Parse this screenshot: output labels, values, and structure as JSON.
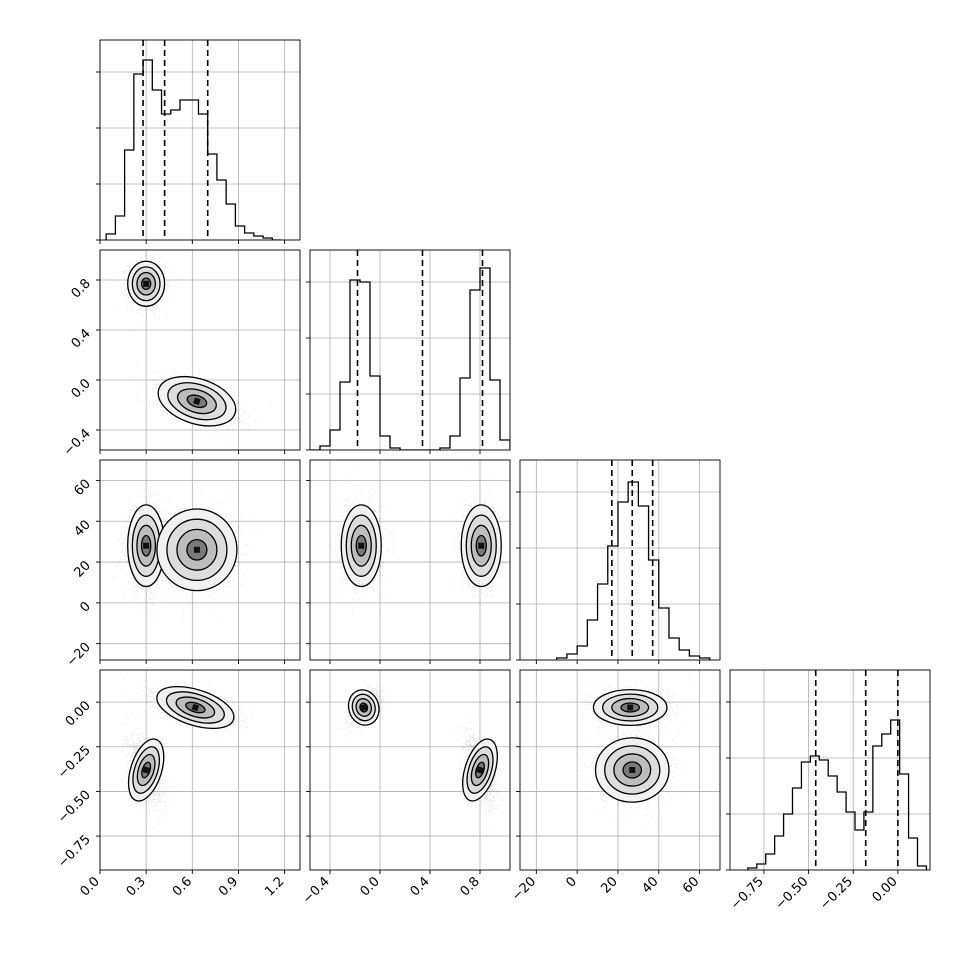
{
  "chart_data": {
    "type": "corner",
    "title": "",
    "grid": true,
    "variables": [
      {
        "range": [
          0.0,
          1.3
        ],
        "ticks": [
          0.0,
          0.3,
          0.6,
          0.9,
          1.2
        ],
        "tick_labels": [
          "0.0",
          "0.3",
          "0.6",
          "0.9",
          "1.2"
        ]
      },
      {
        "range": [
          -0.56,
          1.04
        ],
        "ticks": [
          -0.4,
          0.0,
          0.4,
          0.8
        ],
        "tick_labels": [
          "−0.4",
          "0.0",
          "0.4",
          "0.8"
        ]
      },
      {
        "range": [
          -28,
          70
        ],
        "ticks": [
          -20,
          0,
          20,
          40,
          60
        ],
        "tick_labels": [
          "−20",
          "0",
          "20",
          "40",
          "60"
        ]
      },
      {
        "range": [
          -0.94,
          0.18
        ],
        "ticks": [
          -0.75,
          -0.5,
          -0.25,
          0.0
        ],
        "tick_labels": [
          "−0.75",
          "−0.50",
          "−0.25",
          "0.00"
        ]
      }
    ],
    "diagonal_histograms": [
      {
        "bin_edges": [
          0.04,
          0.1,
          0.16,
          0.22,
          0.28,
          0.34,
          0.4,
          0.46,
          0.52,
          0.58,
          0.64,
          0.7,
          0.76,
          0.82,
          0.88,
          0.94,
          1.0,
          1.06,
          1.12,
          1.18
        ],
        "counts": [
          0.03,
          0.12,
          0.45,
          0.83,
          0.9,
          0.75,
          0.63,
          0.65,
          0.7,
          0.7,
          0.63,
          0.43,
          0.3,
          0.18,
          0.07,
          0.035,
          0.02,
          0.01,
          0.0
        ],
        "quantiles": [
          0.28,
          0.42,
          0.7
        ]
      },
      {
        "bin_edges": [
          -0.56,
          -0.48,
          -0.4,
          -0.32,
          -0.24,
          -0.16,
          -0.08,
          0.0,
          0.08,
          0.16,
          0.24,
          0.32,
          0.4,
          0.48,
          0.56,
          0.64,
          0.72,
          0.8,
          0.88,
          0.96,
          1.04
        ],
        "counts": [
          0.0,
          0.02,
          0.1,
          0.34,
          0.85,
          0.84,
          0.37,
          0.07,
          0.01,
          0.0,
          0.0,
          0.0,
          0.0,
          0.01,
          0.07,
          0.36,
          0.8,
          0.91,
          0.35,
          0.05
        ],
        "quantiles": [
          -0.18,
          0.34,
          0.82
        ]
      },
      {
        "bin_edges": [
          -10,
          -5,
          0,
          5,
          10,
          15,
          20,
          25,
          30,
          35,
          40,
          45,
          50,
          55,
          60,
          65
        ],
        "counts": [
          0.01,
          0.03,
          0.07,
          0.2,
          0.38,
          0.57,
          0.79,
          0.89,
          0.77,
          0.5,
          0.26,
          0.11,
          0.05,
          0.02,
          0.01
        ],
        "quantiles": [
          17,
          27,
          37
        ]
      },
      {
        "bin_edges": [
          -0.84,
          -0.79,
          -0.74,
          -0.69,
          -0.64,
          -0.59,
          -0.54,
          -0.49,
          -0.44,
          -0.39,
          -0.34,
          -0.29,
          -0.24,
          -0.19,
          -0.14,
          -0.09,
          -0.04,
          0.01,
          0.06,
          0.11,
          0.16
        ],
        "counts": [
          0.01,
          0.03,
          0.08,
          0.17,
          0.28,
          0.41,
          0.54,
          0.57,
          0.55,
          0.47,
          0.39,
          0.29,
          0.2,
          0.29,
          0.62,
          0.68,
          0.75,
          0.48,
          0.16,
          0.02
        ],
        "quantiles": [
          -0.46,
          -0.18,
          0.0
        ]
      }
    ],
    "scatter_panels": [
      {
        "row": 1,
        "col": 0,
        "clusters": [
          {
            "center": [
              0.3,
              0.77
            ],
            "sd": [
              0.06,
              0.09
            ],
            "corr": 0.0
          },
          {
            "center": [
              0.63,
              -0.17
            ],
            "sd": [
              0.13,
              0.09
            ],
            "corr": -0.55
          }
        ]
      },
      {
        "row": 2,
        "col": 0,
        "clusters": [
          {
            "center": [
              0.3,
              28
            ],
            "sd": [
              0.06,
              10
            ],
            "corr": 0.0
          },
          {
            "center": [
              0.63,
              26
            ],
            "sd": [
              0.13,
              10
            ],
            "corr": 0.0
          }
        ]
      },
      {
        "row": 2,
        "col": 1,
        "clusters": [
          {
            "center": [
              -0.15,
              28
            ],
            "sd": [
              0.08,
              10
            ],
            "corr": 0.0
          },
          {
            "center": [
              0.81,
              28
            ],
            "sd": [
              0.08,
              10
            ],
            "corr": 0.0
          }
        ]
      },
      {
        "row": 3,
        "col": 0,
        "clusters": [
          {
            "center": [
              0.3,
              -0.38
            ],
            "sd": [
              0.05,
              0.09
            ],
            "corr": -0.55
          },
          {
            "center": [
              0.62,
              -0.03
            ],
            "sd": [
              0.13,
              0.05
            ],
            "corr": -0.55
          }
        ]
      },
      {
        "row": 3,
        "col": 1,
        "clusters": [
          {
            "center": [
              -0.13,
              -0.03
            ],
            "sd": [
              0.06,
              0.05
            ],
            "corr": 0.55
          },
          {
            "center": [
              0.8,
              -0.38
            ],
            "sd": [
              0.06,
              0.09
            ],
            "corr": -0.55
          }
        ]
      },
      {
        "row": 3,
        "col": 2,
        "clusters": [
          {
            "center": [
              26,
              -0.03
            ],
            "sd": [
              9,
              0.05
            ],
            "corr": 0.0
          },
          {
            "center": [
              27,
              -0.38
            ],
            "sd": [
              9,
              0.09
            ],
            "corr": 0.0
          }
        ]
      }
    ]
  }
}
